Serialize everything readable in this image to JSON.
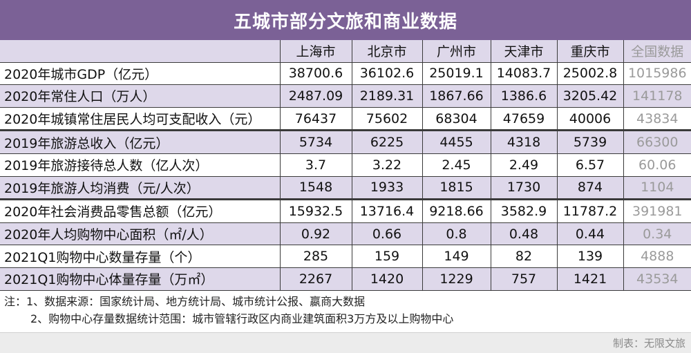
{
  "title": "五城市部分文旅和商业数据",
  "columns": [
    "上海市",
    "北京市",
    "广州市",
    "天津市",
    "重庆市",
    "全国数据"
  ],
  "rows": [
    {
      "label": "2020年城市GDP（亿元）",
      "values": [
        "38700.6",
        "36102.6",
        "25019.1",
        "14083.7",
        "25002.8",
        "1015986"
      ]
    },
    {
      "label": "2020年常住人口（万人）",
      "values": [
        "2487.09",
        "2189.31",
        "1867.66",
        "1386.6",
        "3205.42",
        "141178"
      ]
    },
    {
      "label": "2020年城镇常住居民人均可支配收入（元）",
      "values": [
        "76437",
        "75602",
        "68304",
        "47659",
        "40006",
        "43834"
      ]
    },
    {
      "label": "2019年旅游总收入（亿元）",
      "values": [
        "5734",
        "6225",
        "4455",
        "4318",
        "5739",
        "66300"
      ]
    },
    {
      "label": "2019年旅游接待总人数（亿人次）",
      "values": [
        "3.7",
        "3.22",
        "2.45",
        "2.49",
        "6.57",
        "60.06"
      ]
    },
    {
      "label": "2019年旅游人均消费（元/人次）",
      "values": [
        "1548",
        "1933",
        "1815",
        "1730",
        "874",
        "1104"
      ]
    },
    {
      "label": "2020年社会消费品零售总额（亿元）",
      "values": [
        "15932.5",
        "13716.4",
        "9218.66",
        "3582.9",
        "11787.2",
        "391981"
      ]
    },
    {
      "label": "2020年人均购物中心面积（㎡/人）",
      "values": [
        "0.92",
        "0.66",
        "0.8",
        "0.48",
        "0.44",
        "0.34"
      ]
    },
    {
      "label": "2021Q1购物中心数量存量（个）",
      "values": [
        "285",
        "159",
        "149",
        "82",
        "139",
        "4888"
      ]
    },
    {
      "label": "2021Q1购物中心体量存量（万㎡）",
      "values": [
        "2267",
        "1420",
        "1229",
        "757",
        "1421",
        "43534"
      ]
    }
  ],
  "notes": {
    "line1": "注：1、数据来源：国家统计局、地方统计局、城市统计公报、嬴商大数据",
    "line2": "2、购物中心存量数据统计范围：城市管辖行政区内商业建筑面积3万方及以上购物中心"
  },
  "credit": "制表：无限文旅",
  "colors": {
    "header_bg": "#7b6196",
    "shade": "#ded8ea",
    "national_text": "#9a9a9a"
  }
}
